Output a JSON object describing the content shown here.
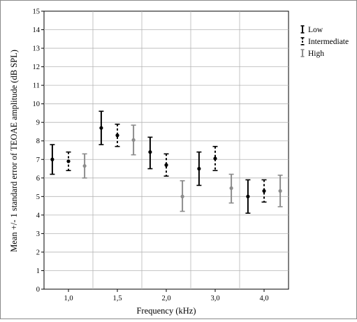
{
  "chart_data": {
    "type": "errorbar",
    "xlabel": "Frequency (kHz)",
    "ylabel": "Mean +/- 1 standard error of TEOAE amplitude (dB SPL)",
    "categories": [
      "1,0",
      "1,5",
      "2,0",
      "3,0",
      "4,0"
    ],
    "ylim": [
      0,
      15
    ],
    "yticks": [
      "0",
      "1",
      "2",
      "3",
      "4",
      "5",
      "6",
      "7",
      "8",
      "9",
      "10",
      "11",
      "12",
      "13",
      "14",
      "15"
    ],
    "grid": true,
    "legend_position": "top-right, outside plot",
    "series": [
      {
        "name": "Low",
        "style": "solid",
        "color": "#000000",
        "values": [
          7.0,
          8.7,
          7.4,
          6.5,
          5.0
        ],
        "low": [
          6.2,
          7.8,
          6.5,
          5.6,
          4.1
        ],
        "high": [
          7.8,
          9.6,
          8.2,
          7.4,
          5.9
        ]
      },
      {
        "name": "Intermediate",
        "style": "dashed",
        "color": "#000000",
        "values": [
          6.9,
          8.3,
          6.7,
          7.05,
          5.3
        ],
        "low": [
          6.4,
          7.7,
          6.1,
          6.4,
          4.7
        ],
        "high": [
          7.4,
          8.9,
          7.3,
          7.7,
          5.9
        ]
      },
      {
        "name": "High",
        "style": "solid",
        "color": "#8c8c8c",
        "values": [
          6.65,
          8.05,
          5.0,
          5.45,
          5.3
        ],
        "low": [
          6.0,
          7.25,
          4.2,
          4.65,
          4.45
        ],
        "high": [
          7.3,
          8.85,
          5.85,
          6.2,
          6.15
        ]
      }
    ]
  }
}
